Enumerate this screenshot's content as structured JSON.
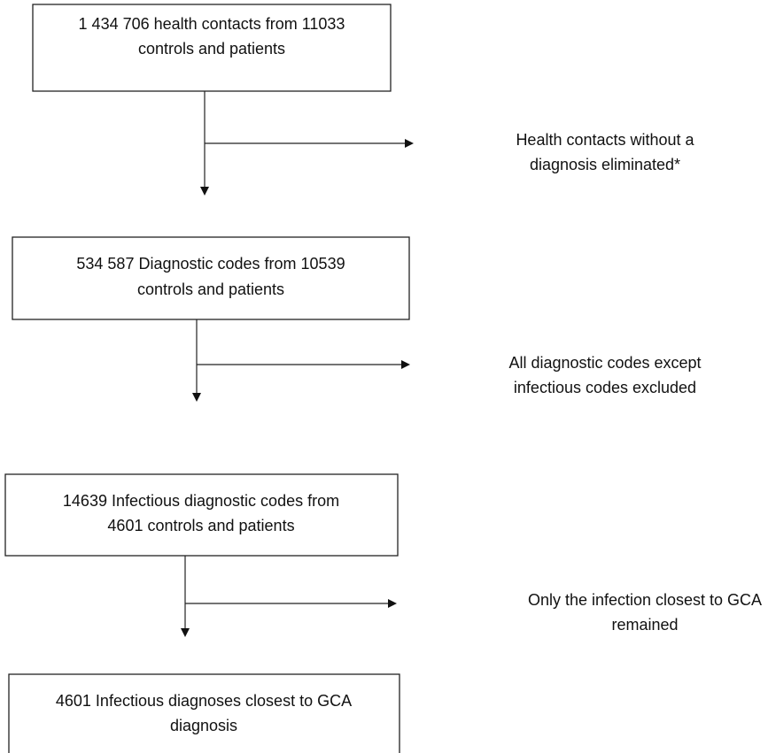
{
  "boxes": [
    {
      "lines": [
        "1 434 706 health contacts from 11033",
        "controls and patients"
      ]
    },
    {
      "lines": [
        "534 587 Diagnostic codes from 10539",
        "controls and patients"
      ]
    },
    {
      "lines": [
        "14639 Infectious diagnostic codes from",
        "4601 controls and patients"
      ]
    },
    {
      "lines": [
        "4601 Infectious diagnoses closest to GCA",
        "diagnosis"
      ]
    }
  ],
  "exclusions": [
    {
      "lines": [
        "Health contacts without a",
        "diagnosis eliminated*"
      ]
    },
    {
      "lines": [
        "All diagnostic codes except",
        "infectious codes excluded"
      ]
    },
    {
      "lines": [
        "Only the infection closest to GCA",
        "remained"
      ]
    }
  ]
}
